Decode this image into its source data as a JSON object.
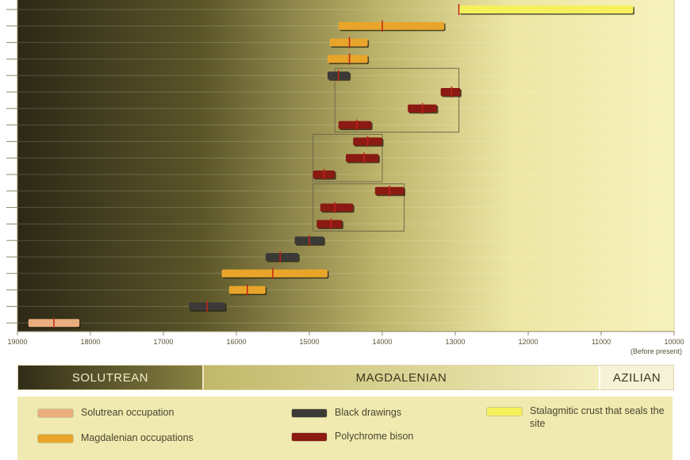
{
  "chart_data": {
    "type": "bar",
    "orientation": "horizontal-range",
    "xlabel_note": "(Before present)",
    "xlim": [
      19000,
      10000
    ],
    "x_ticks": [
      19000,
      18000,
      17000,
      16000,
      15000,
      14000,
      13000,
      12000,
      11000,
      10000
    ],
    "grid": false,
    "ranges": [
      {
        "start": 12950,
        "end": 10560,
        "center": 12950,
        "category": "Stalagmitic crust that seals the site"
      },
      {
        "start": 14600,
        "end": 13150,
        "center": 14000,
        "category": "Magdalenian occupations"
      },
      {
        "start": 14720,
        "end": 14200,
        "center": 14450,
        "category": "Magdalenian occupations"
      },
      {
        "start": 14750,
        "end": 14200,
        "center": 14450,
        "category": "Magdalenian occupations"
      },
      {
        "start": 14750,
        "end": 14450,
        "center": 14600,
        "category": "Black drawings"
      },
      {
        "start": 13200,
        "end": 12930,
        "center": 13050,
        "category": "Polychrome bison"
      },
      {
        "start": 13650,
        "end": 13250,
        "center": 13450,
        "category": "Polychrome bison"
      },
      {
        "start": 14600,
        "end": 14150,
        "center": 14350,
        "category": "Polychrome bison"
      },
      {
        "start": 14400,
        "end": 14000,
        "center": 14200,
        "category": "Polychrome bison"
      },
      {
        "start": 14500,
        "end": 14050,
        "center": 14250,
        "category": "Polychrome bison"
      },
      {
        "start": 14950,
        "end": 14650,
        "center": 14800,
        "category": "Polychrome bison"
      },
      {
        "start": 14100,
        "end": 13700,
        "center": 13900,
        "category": "Polychrome bison"
      },
      {
        "start": 14850,
        "end": 14400,
        "center": 14650,
        "category": "Polychrome bison"
      },
      {
        "start": 14900,
        "end": 14550,
        "center": 14700,
        "category": "Polychrome bison"
      },
      {
        "start": 15200,
        "end": 14800,
        "center": 15000,
        "category": "Black drawings"
      },
      {
        "start": 15600,
        "end": 15150,
        "center": 15400,
        "category": "Black drawings"
      },
      {
        "start": 16200,
        "end": 14750,
        "center": 15500,
        "category": "Magdalenian occupations"
      },
      {
        "start": 16100,
        "end": 15600,
        "center": 15850,
        "category": "Magdalenian occupations"
      },
      {
        "start": 16650,
        "end": 16150,
        "center": 16400,
        "category": "Black drawings"
      },
      {
        "start": 18850,
        "end": 18150,
        "center": 18500,
        "category": "Solutrean occupation"
      }
    ],
    "groups": [
      {
        "name": "group-1",
        "start": 14650,
        "end": 12950,
        "first_row": 4,
        "last_row": 7
      },
      {
        "name": "group-2",
        "start": 14950,
        "end": 14000,
        "first_row": 8,
        "last_row": 10
      },
      {
        "name": "group-3",
        "start": 14950,
        "end": 13700,
        "first_row": 11,
        "last_row": 13
      }
    ],
    "periods": [
      {
        "name": "SOLUTREAN"
      },
      {
        "name": "MAGDALENIAN"
      },
      {
        "name": "AZILIAN"
      }
    ],
    "legend": [
      {
        "label": "Solutrean occupation",
        "color": "#e9ae7e"
      },
      {
        "label": "Magdalenian occupations",
        "color": "#e8a529"
      },
      {
        "label": "Black drawings",
        "color": "#3c3a36"
      },
      {
        "label": "Polychrome bison",
        "color": "#8a1a12"
      },
      {
        "label": "Stalagmitic crust that seals the site",
        "color": "#f5f05c"
      }
    ],
    "colors": {
      "Solutrean occupation": "#e9ae7e",
      "Magdalenian occupations": "#e8a529",
      "Black drawings": "#3c3a36",
      "Polychrome bison": "#8a1a12",
      "Stalagmitic crust that seals the site": "#f5f05c",
      "center_mark": "#c0241a"
    }
  }
}
